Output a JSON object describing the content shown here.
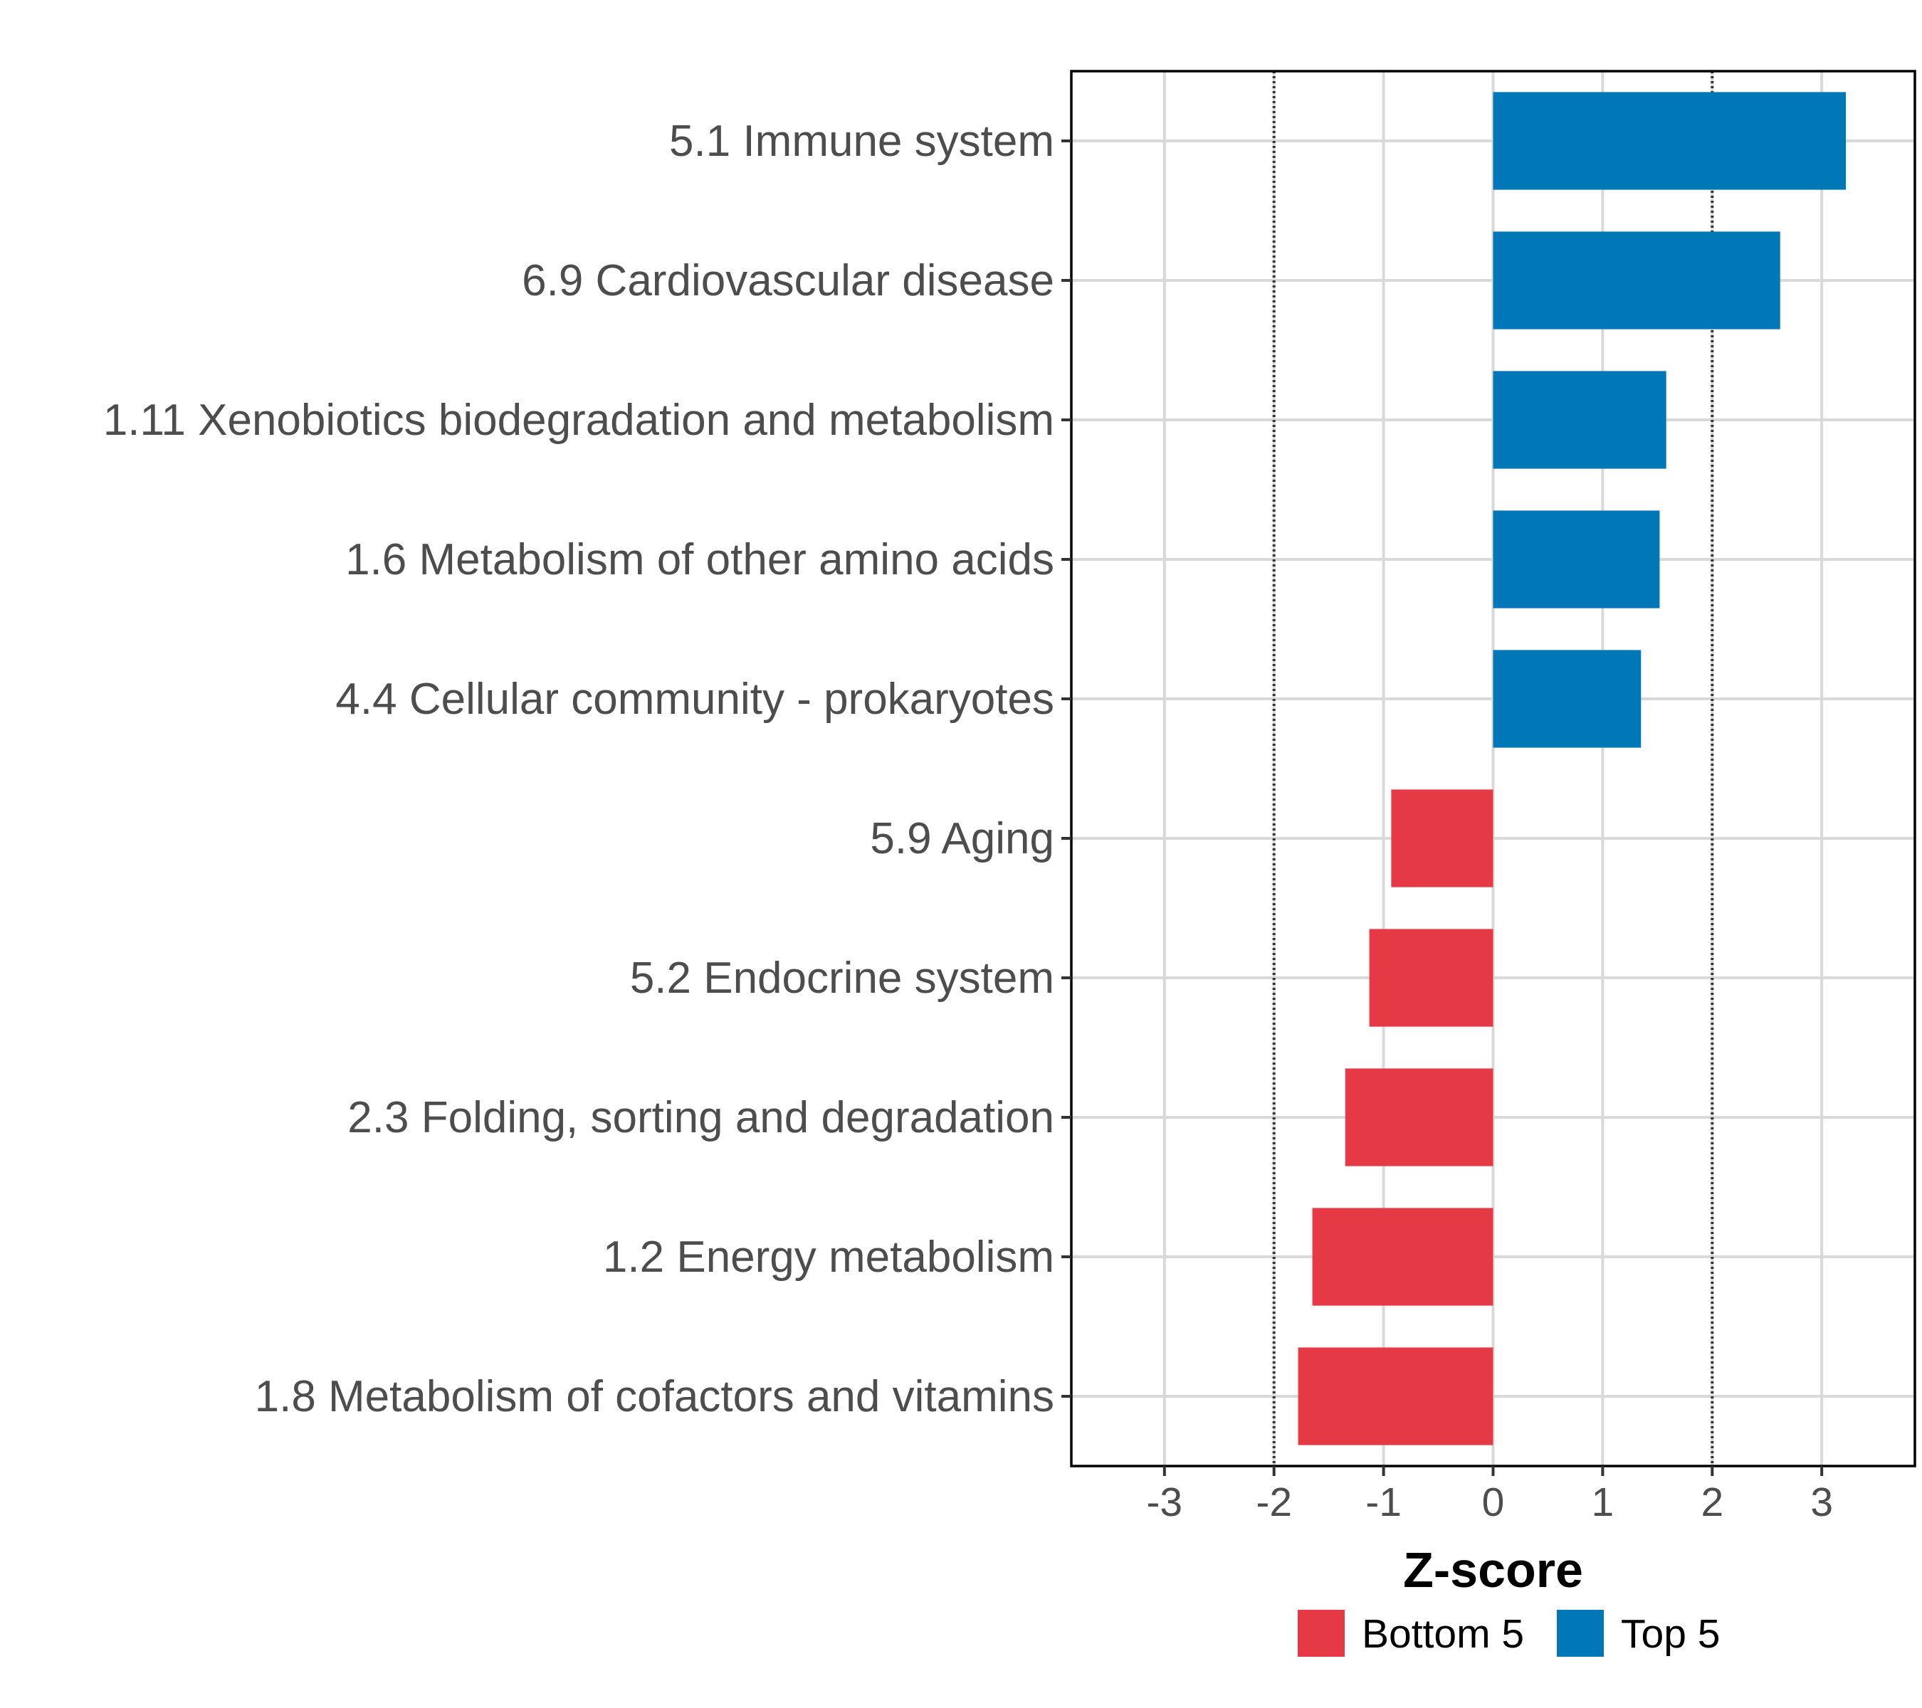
{
  "chart_data": {
    "type": "bar",
    "orientation": "horizontal",
    "title": "",
    "xlabel": "Z-score",
    "ylabel": "",
    "xlim": [
      -3.85,
      3.85
    ],
    "xticks": [
      -3,
      -2,
      -1,
      0,
      1,
      2,
      3
    ],
    "xtick_labels": [
      "-3",
      "-2",
      "-1",
      "0",
      "1",
      "2",
      "3"
    ],
    "threshold_lines": [
      -2,
      2
    ],
    "grid": true,
    "legend_position": "bottom",
    "categories": [
      "5.1 Immune system",
      "6.9 Cardiovascular disease",
      "1.11 Xenobiotics biodegradation and metabolism",
      "1.6 Metabolism of other amino acids",
      "4.4 Cellular community - prokaryotes",
      "5.9 Aging",
      "5.2 Endocrine system",
      "2.3 Folding, sorting and degradation",
      "1.2 Energy metabolism",
      "1.8 Metabolism of cofactors and vitamins"
    ],
    "values": [
      3.22,
      2.62,
      1.58,
      1.52,
      1.35,
      -0.93,
      -1.13,
      -1.35,
      -1.65,
      -1.78
    ],
    "groups": [
      "Top 5",
      "Top 5",
      "Top 5",
      "Top 5",
      "Top 5",
      "Bottom 5",
      "Bottom 5",
      "Bottom 5",
      "Bottom 5",
      "Bottom 5"
    ],
    "legend": [
      {
        "label": "Bottom 5",
        "color": "#e63946"
      },
      {
        "label": "Top 5",
        "color": "#0077b6"
      }
    ]
  }
}
